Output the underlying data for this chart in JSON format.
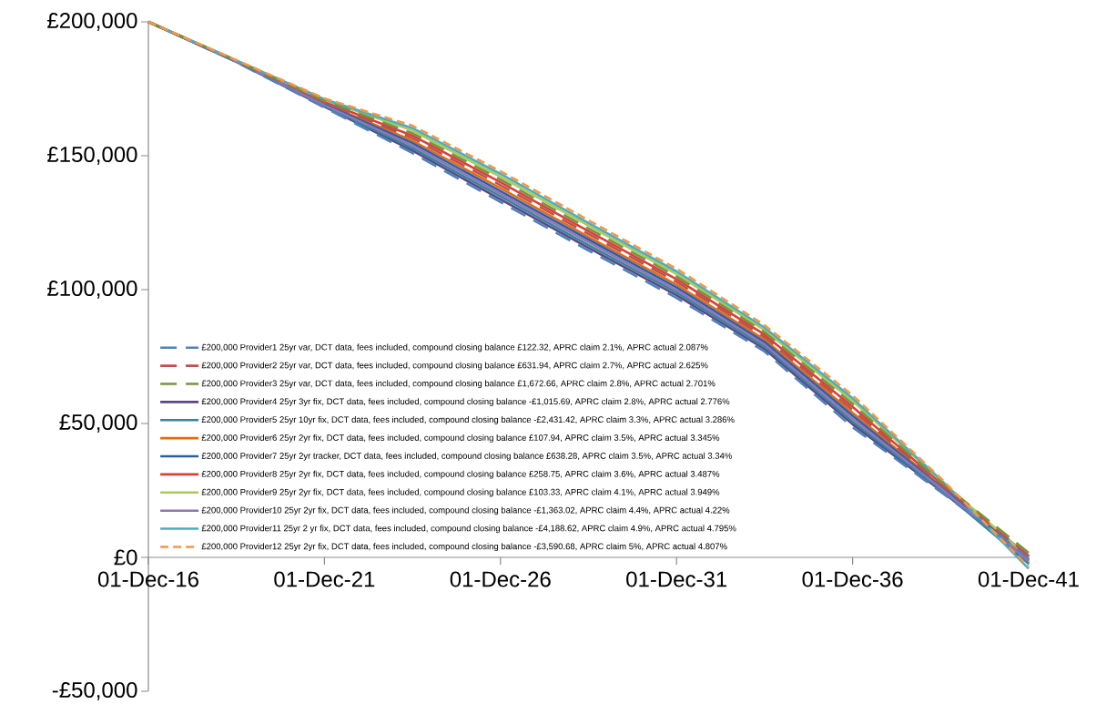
{
  "chart_data": {
    "type": "line",
    "x": [
      "2016-12-01",
      "2019-06-01",
      "2021-12-01",
      "2024-06-01",
      "2026-12-01",
      "2029-06-01",
      "2031-12-01",
      "2034-06-01",
      "2036-12-01",
      "2039-06-01",
      "2041-12-01"
    ],
    "xlim": [
      "2016-12-01",
      "2041-12-01"
    ],
    "xticks": [
      {
        "value": "2016-12-01",
        "label": "01-Dec-16"
      },
      {
        "value": "2021-12-01",
        "label": "01-Dec-21"
      },
      {
        "value": "2026-12-01",
        "label": "01-Dec-26"
      },
      {
        "value": "2031-12-01",
        "label": "01-Dec-31"
      },
      {
        "value": "2036-12-01",
        "label": "01-Dec-36"
      },
      {
        "value": "2041-12-01",
        "label": "01-Dec-41"
      }
    ],
    "ylim": [
      -50000,
      200000
    ],
    "yticks": [
      {
        "value": -50000,
        "label": "-£50,000"
      },
      {
        "value": 0,
        "label": "£0"
      },
      {
        "value": 50000,
        "label": "£50,000"
      },
      {
        "value": 100000,
        "label": "£100,000"
      },
      {
        "value": 150000,
        "label": "£150,000"
      },
      {
        "value": 200000,
        "label": "£200,000"
      }
    ],
    "legend": "bottom left",
    "marker": "none",
    "grid": false,
    "series": [
      {
        "name": "£200,000 Provider1 25yr var,  DCT data, fees included, compound closing balance £122.32, APRC claim 2.1%, APRC actual 2.087%",
        "color": "#4f81bd",
        "line_style": "dashed",
        "values": [
          200000,
          185000,
          168000,
          151000,
          132700,
          114600,
          96900,
          76900,
          48600,
          24500,
          100
        ]
      },
      {
        "name": "£200,000 Provider2 25yr var,  DCT data, fees included, compound closing balance £631.94, APRC claim 2.7%, APRC actual 2.625%",
        "color": "#c0504d",
        "line_style": "dashed",
        "values": [
          200000,
          185400,
          169900,
          156600,
          139000,
          120800,
          102900,
          82300,
          55100,
          27300,
          600
        ]
      },
      {
        "name": "£200,000 Provider3 25yr var,  DCT data, fees included, compound closing balance £1,672.66, APRC claim 2.8%, APRC actual 2.701%",
        "color": "#77933c",
        "line_style": "dashed",
        "values": [
          200000,
          185500,
          170500,
          158400,
          141100,
          122800,
          104900,
          84100,
          57300,
          28200,
          1700
        ]
      },
      {
        "name": "£200,000 Provider4 25yr 3yr fix,  DCT data, fees included, compound closing balance -£1,015.69, APRC claim 2.8%, APRC actual 2.776%",
        "color": "#5c4684",
        "line_style": "solid",
        "values": [
          200000,
          185100,
          168300,
          151900,
          133700,
          115600,
          97900,
          77800,
          49700,
          25000,
          -1000
        ]
      },
      {
        "name": "£200,000 Provider5 25yr 10yr fix,  DCT data, fees included, compound closing balance -£2,431.42, APRC claim 3.3%, APRC actual 3.286%",
        "color": "#31859c",
        "line_style": "solid",
        "values": [
          200000,
          185100,
          168600,
          152800,
          134800,
          116600,
          98900,
          78700,
          50700,
          25400,
          -2400
        ]
      },
      {
        "name": "£200,000 Provider6 25yr 2yr fix,  DCT data, fees included, compound closing balance £107.94, APRC claim 3.5%, APRC actual 3.345%",
        "color": "#e46c0a",
        "line_style": "solid",
        "values": [
          200000,
          185300,
          169500,
          155600,
          137900,
          119700,
          101800,
          81300,
          54000,
          26800,
          100
        ]
      },
      {
        "name": "£200,000 Provider7 25yr 2yr tracker,  DCT data, fees included, compound closing balance £638.28, APRC claim 3.5%, APRC actual 3.34%",
        "color": "#2a5fa8",
        "line_style": "solid",
        "values": [
          200000,
          185300,
          169200,
          154700,
          136800,
          118700,
          100800,
          80400,
          52900,
          26300,
          600
        ]
      },
      {
        "name": "£200,000 Provider8 25yr 2yr fix,  DCT data, fees included, compound closing balance £258.75, APRC claim 3.6%, APRC actual 3.487%",
        "color": "#d9403c",
        "line_style": "solid",
        "values": [
          200000,
          185400,
          170200,
          157500,
          140100,
          121800,
          103900,
          83200,
          56200,
          27800,
          300
        ]
      },
      {
        "name": "£200,000 Provider9 25yr 2yr fix,  DCT data, fees included, compound closing balance £103.33, APRC claim 4.1%, APRC actual 3.949%",
        "color": "#a8cc5a",
        "line_style": "solid",
        "values": [
          200000,
          185600,
          170800,
          159400,
          142100,
          123900,
          105800,
          84900,
          58400,
          28700,
          100
        ]
      },
      {
        "name": "£200,000 Provider10 25yr 2yr fix,  DCT data, fees included, compound closing balance -£1,363.02, APRC claim 4.4%, APRC actual 4.22%",
        "color": "#9274b8",
        "line_style": "solid",
        "values": [
          200000,
          185200,
          168900,
          153800,
          135800,
          117700,
          99800,
          79500,
          51800,
          25900,
          -1400
        ]
      },
      {
        "name": "£200,000 Provider11 25yr 2 yr fix,  DCT data, fees included, compound closing balance -£4,188.62, APRC claim 4.9%, APRC actual 4.795%",
        "color": "#4bacc6",
        "line_style": "solid",
        "values": [
          200000,
          185600,
          171100,
          160300,
          143200,
          124900,
          106800,
          85800,
          59400,
          29100,
          -4200
        ]
      },
      {
        "name": "£200,000 Provider12 25yr 2yr fix,  DCT data, fees included, compound closing balance -£3,590.68, APRC claim 5%, APRC actual 4.807%",
        "color": "#f79646",
        "line_style": "dotted",
        "values": [
          200000,
          185700,
          171400,
          161200,
          144200,
          125900,
          107800,
          86700,
          60500,
          29600,
          -3600
        ]
      }
    ]
  }
}
